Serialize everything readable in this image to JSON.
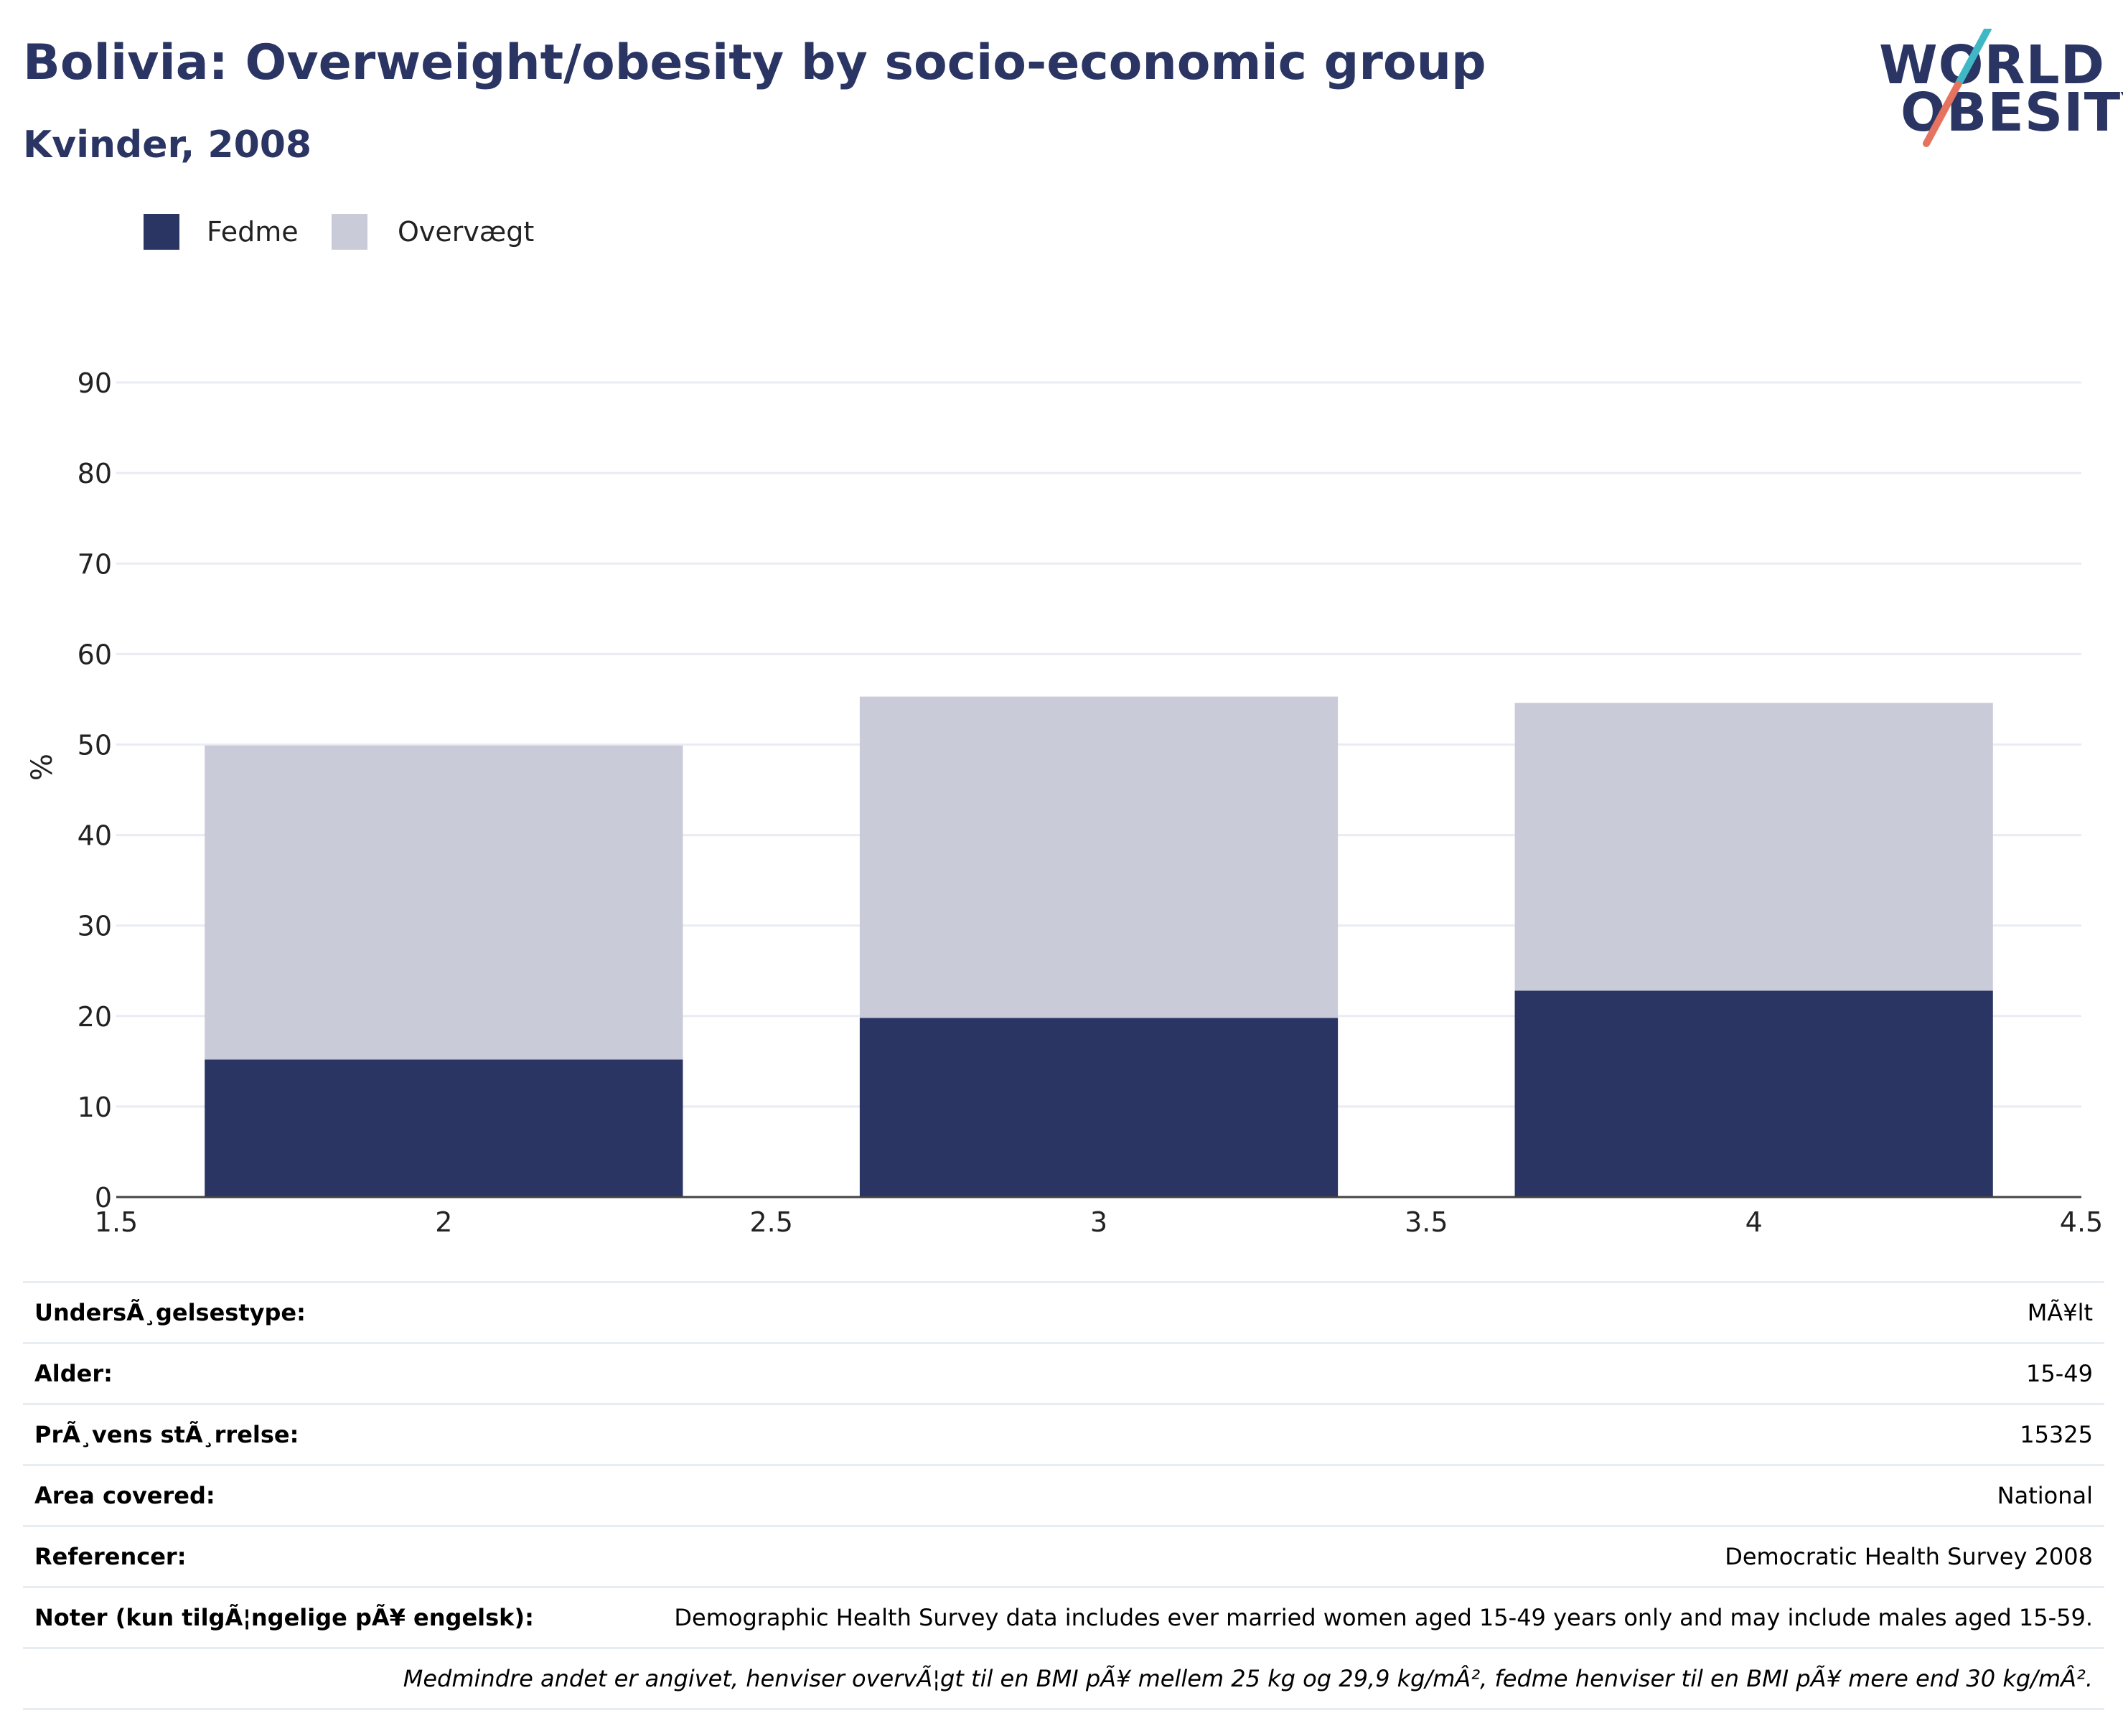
{
  "title": "Bolivia: Overweight/obesity by socio-economic group",
  "subtitle": "Kvinder, 2008",
  "logo": {
    "line1": "WORLD",
    "line2": "OBESITY",
    "accent_teal": "#3fb7c4",
    "accent_coral": "#e5735f"
  },
  "legend": [
    {
      "label": "Fedme",
      "color": "#2a3564"
    },
    {
      "label": "Overvægt",
      "color": "#c9ccd8"
    }
  ],
  "colors": {
    "axis": "#444444",
    "grid": "#e9ecf2",
    "text": "#222222"
  },
  "chart_data": {
    "type": "bar",
    "stacked": true,
    "x": [
      2,
      3,
      4
    ],
    "series": [
      {
        "name": "Fedme",
        "values": [
          15.2,
          19.8,
          22.8
        ],
        "color": "#2a3564"
      },
      {
        "name": "Overvægt",
        "values": [
          34.7,
          35.5,
          31.8
        ],
        "color": "#c9ccd8"
      }
    ],
    "xlim": [
      1.5,
      4.5
    ],
    "x_ticks": [
      "1.5",
      "2",
      "2.5",
      "3",
      "3.5",
      "4",
      "4.5"
    ],
    "ylim": [
      0,
      95
    ],
    "y_ticks": [
      "0",
      "10",
      "20",
      "30",
      "40",
      "50",
      "60",
      "70",
      "80",
      "90"
    ],
    "ylabel": "%",
    "xlabel": "",
    "grid": true,
    "legend_position": "top-left"
  },
  "info": {
    "rows": [
      {
        "label": "UndersÃ¸gelsestype:",
        "value": "MÃ¥lt"
      },
      {
        "label": "Alder:",
        "value": "15-49"
      },
      {
        "label": "PrÃ¸vens stÃ¸rrelse:",
        "value": "15325"
      },
      {
        "label": "Area covered:",
        "value": "National"
      },
      {
        "label": "Referencer:",
        "value": "Democratic Health Survey 2008"
      },
      {
        "label": "Noter (kun tilgÃ¦ngelige pÃ¥ engelsk):",
        "value": "Demographic Health Survey data includes ever married women aged 15-49 years only and may include males aged 15-59."
      }
    ],
    "footnote": "Medmindre andet er angivet, henviser overvÃ¦gt til en BMI pÃ¥ mellem 25 kg og 29,9 kg/mÂ², fedme henviser til en BMI pÃ¥ mere end 30 kg/mÂ²."
  }
}
